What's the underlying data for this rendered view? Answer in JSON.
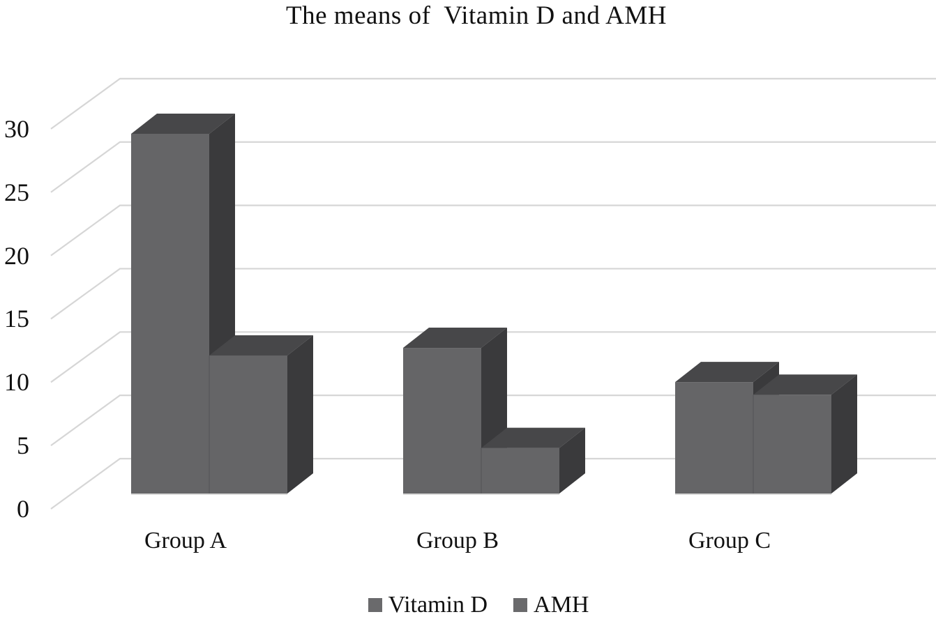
{
  "chart_data": {
    "type": "bar",
    "variant": "3d-clustered-column",
    "title": "The means of  Vitamin D and AMH",
    "categories": [
      "Group A",
      "Group B",
      "Group C"
    ],
    "series": [
      {
        "name": "Vitamin D",
        "values": [
          28.4,
          11.5,
          8.8
        ]
      },
      {
        "name": "AMH",
        "values": [
          10.9,
          3.6,
          7.8
        ]
      }
    ],
    "xlabel": "",
    "ylabel": "",
    "ylim": [
      0,
      30
    ],
    "yticks": [
      0,
      5,
      10,
      15,
      20,
      25,
      30
    ],
    "grid": true,
    "legend_position": "bottom",
    "colors": {
      "bar_front": "#656567",
      "bar_top": "#474749",
      "bar_side": "#3a3a3c",
      "gridline": "#d6d6d6",
      "baseline": "#d9d9d9",
      "seam": "#56565a",
      "text": "#111111",
      "legend_marker": "#6a6a6c",
      "background": "#ffffff"
    }
  }
}
